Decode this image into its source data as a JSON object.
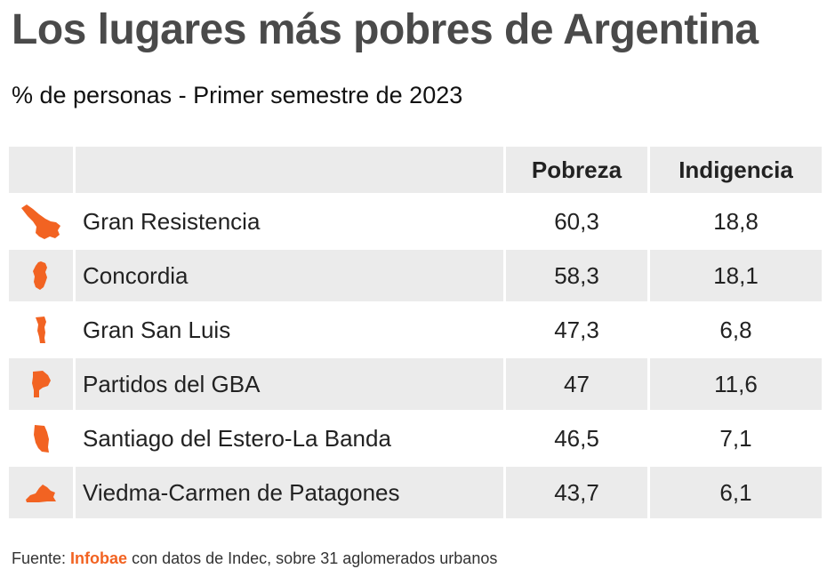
{
  "chart_data": {
    "type": "table",
    "title": "Los lugares más pobres de Argentina",
    "subtitle": "% de personas - Primer semestre de 2023",
    "columns": [
      "Pobreza",
      "Indigencia"
    ],
    "rows": [
      {
        "name": "Gran Resistencia",
        "pobreza": "60,3",
        "indigencia": "18,8",
        "icon": "chaco-province-icon"
      },
      {
        "name": "Concordia",
        "pobreza": "58,3",
        "indigencia": "18,1",
        "icon": "entre-rios-province-icon"
      },
      {
        "name": "Gran San Luis",
        "pobreza": "47,3",
        "indigencia": "6,8",
        "icon": "san-luis-province-icon"
      },
      {
        "name": "Partidos del GBA",
        "pobreza": "47",
        "indigencia": "11,6",
        "icon": "gba-region-icon"
      },
      {
        "name": "Santiago del Estero-La Banda",
        "pobreza": "46,5",
        "indigencia": "7,1",
        "icon": "santiago-del-estero-province-icon"
      },
      {
        "name": "Viedma-Carmen de Patagones",
        "pobreza": "43,7",
        "indigencia": "6,1",
        "icon": "rio-negro-province-icon"
      }
    ]
  },
  "source": {
    "prefix": "Fuente: ",
    "brand": "Infobae",
    "suffix": " con datos de Indec, sobre 31 aglomerados urbanos"
  },
  "colors": {
    "accent": "#f26322",
    "header_bg": "#ebebeb",
    "title": "#4a4a4a"
  }
}
